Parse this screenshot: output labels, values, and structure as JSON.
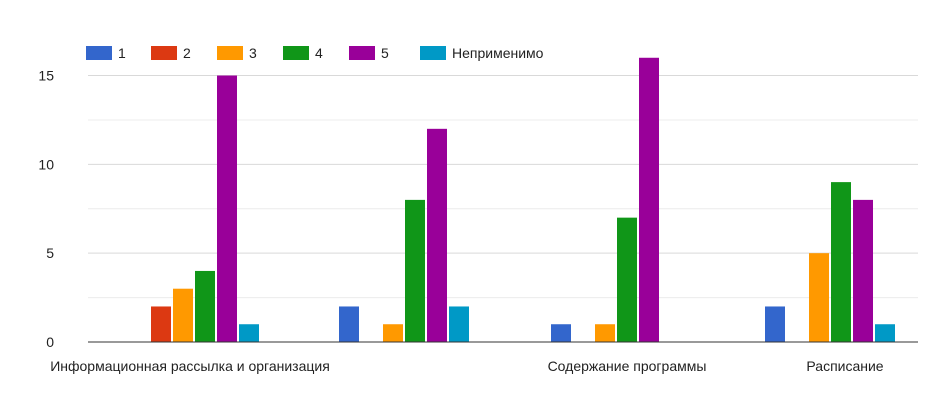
{
  "chart_data": {
    "type": "bar",
    "title": "",
    "xlabel": "",
    "ylabel": "",
    "ylim": [
      0,
      17
    ],
    "yticks": [
      0,
      5,
      10,
      15
    ],
    "grid": true,
    "legend_position": "top-left",
    "categories": [
      "Информационная рассылка и организация",
      "",
      "Содержание программы",
      "Расписание"
    ],
    "series": [
      {
        "name": "1",
        "color": "#3366cc",
        "values": [
          0,
          2,
          1,
          2
        ]
      },
      {
        "name": "2",
        "color": "#dc3912",
        "values": [
          2,
          0,
          0,
          0
        ]
      },
      {
        "name": "3",
        "color": "#ff9900",
        "values": [
          3,
          1,
          1,
          5
        ]
      },
      {
        "name": "4",
        "color": "#109618",
        "values": [
          4,
          8,
          7,
          9
        ]
      },
      {
        "name": "5",
        "color": "#990099",
        "values": [
          15,
          12,
          16,
          8
        ]
      },
      {
        "name": "Неприменимо",
        "color": "#0099c6",
        "values": [
          1,
          2,
          0,
          1
        ]
      }
    ]
  }
}
